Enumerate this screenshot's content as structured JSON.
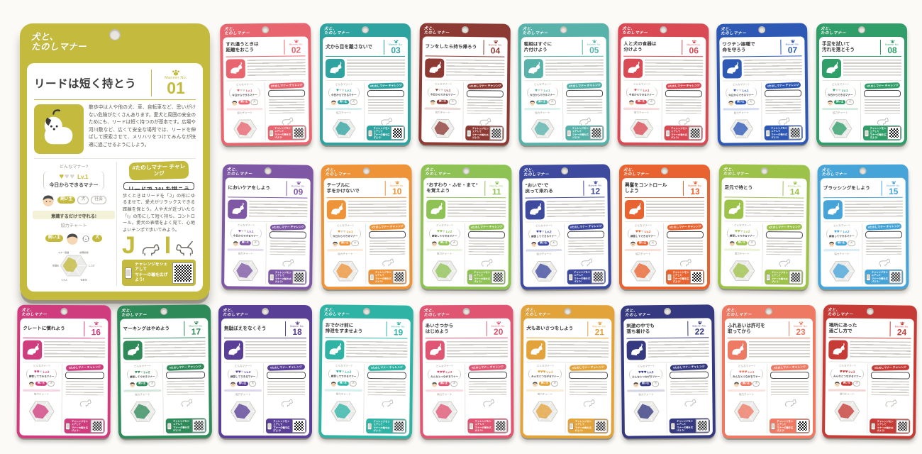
{
  "brand": {
    "logo_line1": "犬と、",
    "logo_line2": "たのしマナー",
    "number_label": "Manner No."
  },
  "labels": {
    "manner_q": "どんなマナー?",
    "chart": "協力チャート",
    "roles": [
      "飼い主",
      "犬",
      "社会"
    ],
    "radar_axes": [
      "マナー意識",
      "信頼関係",
      "しつけ",
      "社会化",
      "スキル",
      "習慣化"
    ],
    "level_names": {
      "1": "今日からできるマナー",
      "2": "練習してできるマナー",
      "3": "みんなとつながるマナー"
    },
    "challenge_badge": "#たのしマナー チャレンジ",
    "share_text": "チャレンジをシェアして\nマナーの輪を広げよう!"
  },
  "featured_card": {
    "number": "01",
    "title": "リードは短く持とう",
    "level": 1,
    "color": "#c3ba3e",
    "body": "散歩中は人や他の犬、車、自転車など、思いがけない危険がたくさんあります。愛犬と周囲の安全のためにも、リードは短く持つのが基本です。広場や河川敷など、広くて安全な場所では、リードを伸ばして探索させて、メリハリをつけてみんなが快適に過ごせるようにしよう。",
    "note": "意識するだけで守れる!",
    "challenge_title": "リードで J&I を描こう",
    "challenge_body": "歩くときはリードを「J」の形にゆるませて、愛犬がリラックスできる距離を保とう。人や犬が近づいたら「I」の形にして短く持ち、コントロール。愛犬の表情をよく見て、心地よいテンポで歩いてみよう。",
    "letters": [
      "J",
      "I"
    ]
  },
  "cards": [
    {
      "number": "02",
      "title": "すれ違うときは\n距離をおこう",
      "level": 1,
      "color": "#e8646e"
    },
    {
      "number": "03",
      "title": "犬から目を離さないで",
      "level": 1,
      "color": "#2fa3a0"
    },
    {
      "number": "04",
      "title": "フンをしたら持ち帰ろう",
      "level": 1,
      "color": "#8d3a34"
    },
    {
      "number": "05",
      "title": "粗相はすぐに\n片付けよう",
      "level": 1,
      "color": "#57b3aa"
    },
    {
      "number": "06",
      "title": "人と犬の食器は\n分けよう",
      "level": 1,
      "color": "#d94a55"
    },
    {
      "number": "07",
      "title": "ワクチン接種で\n命を守ろう",
      "level": 1,
      "color": "#2d59b5"
    },
    {
      "number": "08",
      "title": "手足を拭いて\n汚れを落とそう",
      "level": 1,
      "color": "#2f9e68"
    },
    {
      "number": "09",
      "title": "においケアをしよう",
      "level": 1,
      "color": "#7e57a5"
    },
    {
      "number": "10",
      "title": "テーブルに\n手をかけないで",
      "level": 1,
      "color": "#ee9338"
    },
    {
      "number": "11",
      "title": "“おすわり・ふせ・まて”\nを覚えよう",
      "level": 2,
      "color": "#8fc255"
    },
    {
      "number": "12",
      "title": "“おいで”で\n戻って来れる",
      "level": 2,
      "color": "#3d4a9e"
    },
    {
      "number": "13",
      "title": "興奮をコントロール\nしよう",
      "level": 2,
      "color": "#e96330"
    },
    {
      "number": "14",
      "title": "足元で待とう",
      "level": 2,
      "color": "#9dc24a"
    },
    {
      "number": "15",
      "title": "ブラッシングをしよう",
      "level": 2,
      "color": "#46a4d9"
    },
    {
      "number": "16",
      "title": "クレートに慣れよう",
      "level": 2,
      "color": "#cf3d7e"
    },
    {
      "number": "17",
      "title": "マーキングはやめよう",
      "level": 2,
      "color": "#2f8a5a"
    },
    {
      "number": "18",
      "title": "無駄ぼえをなくそう",
      "level": 2,
      "color": "#5a3f96"
    },
    {
      "number": "19",
      "title": "おでかけ前に\n排泄をすませよう",
      "level": 2,
      "color": "#2eb3a4"
    },
    {
      "number": "20",
      "title": "あいさつから\nはじめよう",
      "level": 3,
      "color": "#e05672"
    },
    {
      "number": "21",
      "title": "犬もあいさつをしよう",
      "level": 3,
      "color": "#e3a33b"
    },
    {
      "number": "22",
      "title": "刺激の中でも\n落ち着ける",
      "level": 3,
      "color": "#35397f"
    },
    {
      "number": "23",
      "title": "ふれあいは許可を\n取ってから",
      "level": 3,
      "color": "#ee7a64"
    },
    {
      "number": "24",
      "title": "場所にあった\n過ごし方で",
      "level": 3,
      "color": "#c63b35"
    }
  ]
}
